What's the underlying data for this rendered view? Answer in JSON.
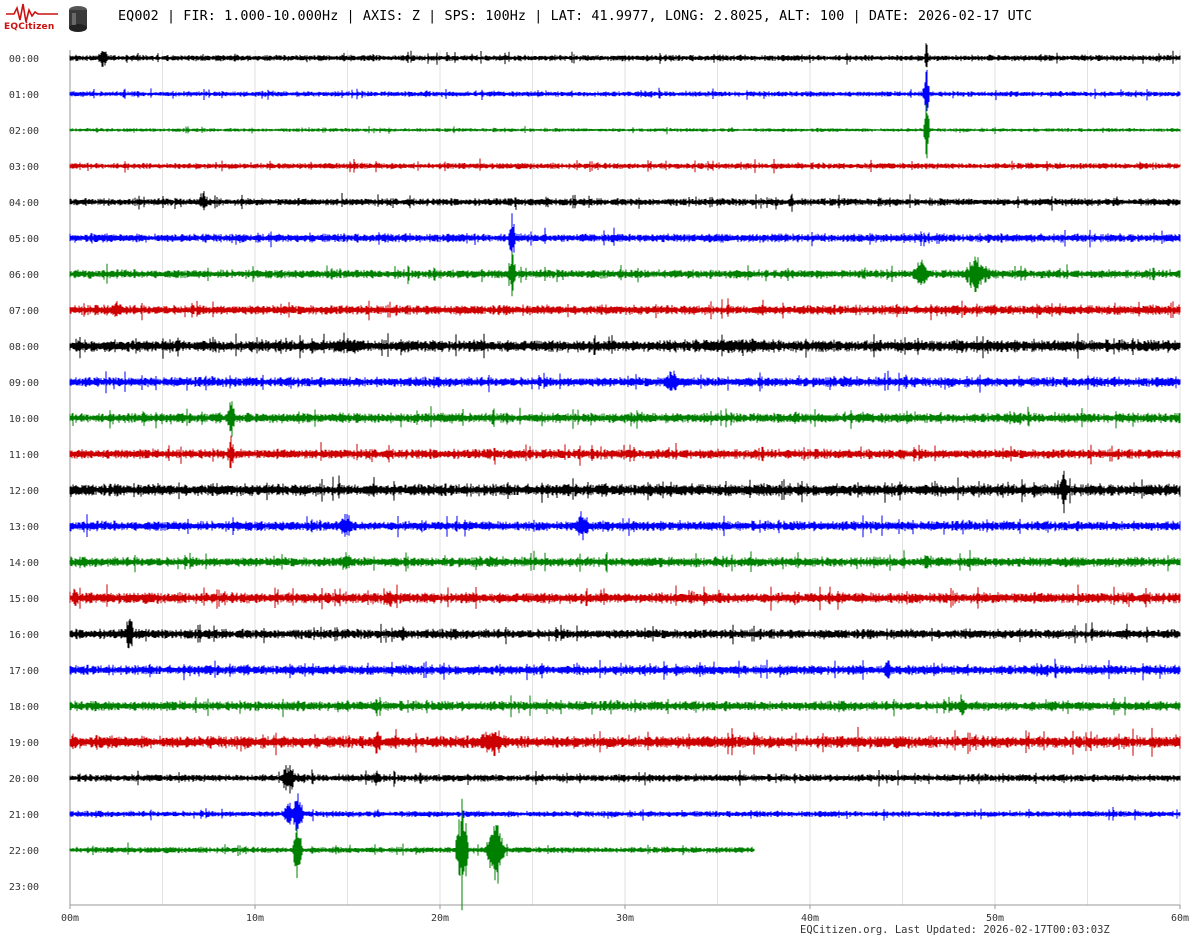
{
  "header": {
    "title": "EQ002 | FIR: 1.000-10.000Hz | AXIS: Z | SPS: 100Hz | LAT: 41.9977, LONG: 2.8025, ALT: 100 | DATE: 2026-02-17 UTC",
    "logo_text": "EQCitizen",
    "logo_icon": "seismograph-logo-icon",
    "sensor_icon": "seismometer-sensor-icon"
  },
  "footer": {
    "updated": "EQCitizen.org. Last Updated: 2026-02-17T00:03:03Z"
  },
  "chart_data": {
    "type": "line",
    "title": "",
    "xlabel": "",
    "ylabel": "",
    "x_ticks": [
      "00m",
      "10m",
      "20m",
      "30m",
      "40m",
      "50m",
      "60m"
    ],
    "xlim_minutes": [
      0,
      60
    ],
    "grid": true,
    "series_colors": [
      "#000000",
      "#0000ff",
      "#008000",
      "#cc0000"
    ],
    "rows": [
      {
        "label": "00:00",
        "minutes": 60
      },
      {
        "label": "01:00",
        "minutes": 60
      },
      {
        "label": "02:00",
        "minutes": 60
      },
      {
        "label": "03:00",
        "minutes": 60
      },
      {
        "label": "04:00",
        "minutes": 60
      },
      {
        "label": "05:00",
        "minutes": 60
      },
      {
        "label": "06:00",
        "minutes": 60
      },
      {
        "label": "07:00",
        "minutes": 60
      },
      {
        "label": "08:00",
        "minutes": 60
      },
      {
        "label": "09:00",
        "minutes": 60
      },
      {
        "label": "10:00",
        "minutes": 60
      },
      {
        "label": "11:00",
        "minutes": 60
      },
      {
        "label": "12:00",
        "minutes": 60
      },
      {
        "label": "13:00",
        "minutes": 60
      },
      {
        "label": "14:00",
        "minutes": 60
      },
      {
        "label": "15:00",
        "minutes": 60
      },
      {
        "label": "16:00",
        "minutes": 60
      },
      {
        "label": "17:00",
        "minutes": 60
      },
      {
        "label": "18:00",
        "minutes": 60
      },
      {
        "label": "19:00",
        "minutes": 60
      },
      {
        "label": "20:00",
        "minutes": 60
      },
      {
        "label": "21:00",
        "minutes": 60
      },
      {
        "label": "22:00",
        "minutes": 37
      },
      {
        "label": "23:00",
        "minutes": 0
      }
    ]
  }
}
